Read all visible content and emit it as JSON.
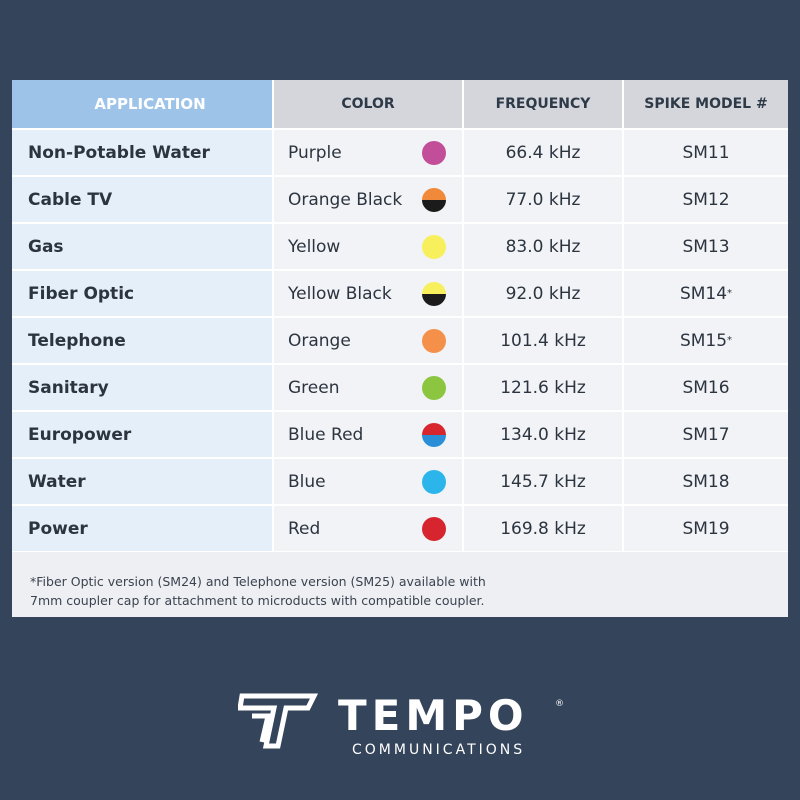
{
  "table": {
    "headers": [
      "APPLICATION",
      "COLOR",
      "FREQUENCY",
      "SPIKE MODEL #"
    ],
    "rows": [
      {
        "application": "Non-Potable Water",
        "color": "Purple",
        "swatch": [
          "#c24d98",
          "#c24d98"
        ],
        "frequency": "66.4 kHz",
        "model": "SM11"
      },
      {
        "application": "Cable TV",
        "color": "Orange Black",
        "swatch": [
          "#f0893a",
          "#1b1b1b"
        ],
        "frequency": "77.0 kHz",
        "model": "SM12"
      },
      {
        "application": "Gas",
        "color": "Yellow",
        "swatch": [
          "#f8ef5c",
          "#f8ef5c"
        ],
        "frequency": "83.0 kHz",
        "model": "SM13"
      },
      {
        "application": "Fiber Optic",
        "color": "Yellow Black",
        "swatch": [
          "#f8ef5c",
          "#1b1b1b"
        ],
        "frequency": "92.0 kHz",
        "model": "SM14",
        "note": "*"
      },
      {
        "application": "Telephone",
        "color": "Orange",
        "swatch": [
          "#f4904a",
          "#f4904a"
        ],
        "frequency": "101.4 kHz",
        "model": "SM15",
        "note": "*"
      },
      {
        "application": "Sanitary",
        "color": "Green",
        "swatch": [
          "#8cc540",
          "#8cc540"
        ],
        "frequency": "121.6 kHz",
        "model": "SM16"
      },
      {
        "application": "Europower",
        "color": "Blue Red",
        "swatch": [
          "#d8262f",
          "#2a8fd6"
        ],
        "frequency": "134.0 kHz",
        "model": "SM17"
      },
      {
        "application": "Water",
        "color": "Blue",
        "swatch": [
          "#2bb5ea",
          "#2bb5ea"
        ],
        "frequency": "145.7 kHz",
        "model": "SM18"
      },
      {
        "application": "Power",
        "color": "Red",
        "swatch": [
          "#d6252e",
          "#d6252e"
        ],
        "frequency": "169.8 kHz",
        "model": "SM19"
      }
    ],
    "footnote": [
      "*Fiber Optic version (SM24) and Telephone version (SM25) available with",
      "7mm coupler cap for attachment to microducts with compatible coupler."
    ]
  },
  "logo": {
    "name": "TEMPO",
    "mark": "®",
    "tagline": "COMMUNICATIONS"
  }
}
